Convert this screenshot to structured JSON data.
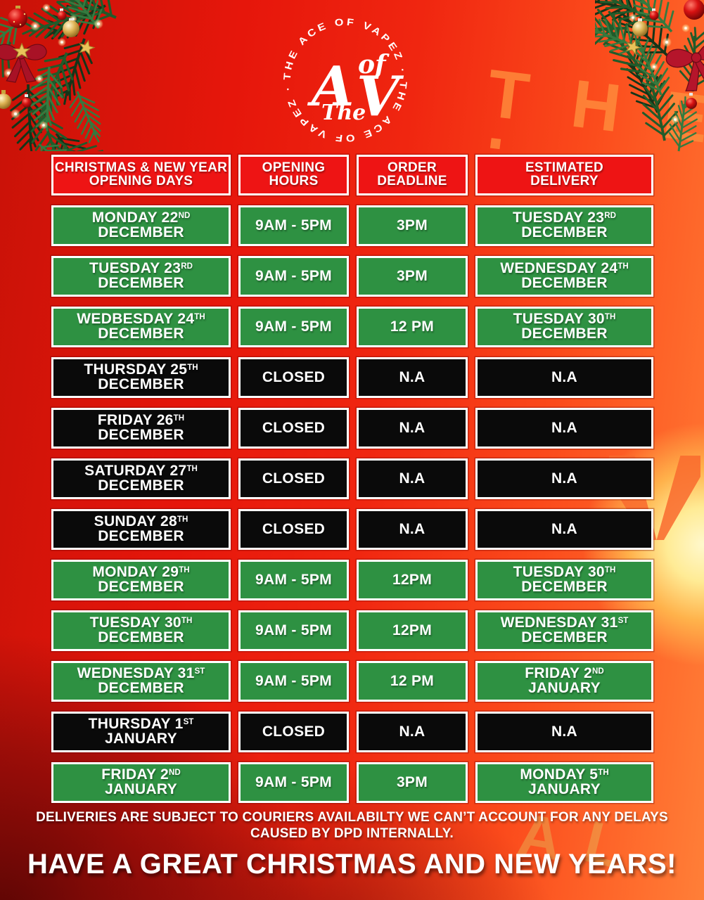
{
  "logo": {
    "ring_text": "THE ACE OF VAPEZ · THE ACE OF VAPEZ ·",
    "monogram": {
      "the": "The",
      "a": "A",
      "of": "of",
      "v": "V"
    }
  },
  "watermark": {
    "top_letters": "THE",
    "top_dot": "·",
    "bottom_letters": [
      "A",
      "L"
    ]
  },
  "table": {
    "headers": [
      {
        "l1": "CHRISTMAS & NEW YEAR",
        "l2": "OPENING DAYS"
      },
      {
        "l1": "OPENING",
        "l2": "HOURS"
      },
      {
        "l1": "ORDER",
        "l2": "DEADLINE"
      },
      {
        "l1": "ESTIMATED",
        "l2": "DELIVERY"
      }
    ],
    "rows": [
      {
        "status": "open",
        "day": {
          "l1": "MONDAY 22",
          "sup": "ND",
          "l2": "DECEMBER"
        },
        "hours": "9AM - 5PM",
        "deadline": "3PM",
        "delivery": {
          "l1": "TUESDAY 23",
          "sup": "RD",
          "l2": "DECEMBER"
        }
      },
      {
        "status": "open",
        "day": {
          "l1": "TUESDAY 23",
          "sup": "RD",
          "l2": "DECEMBER"
        },
        "hours": "9AM - 5PM",
        "deadline": "3PM",
        "delivery": {
          "l1": "WEDNESDAY 24",
          "sup": "TH",
          "l2": "DECEMBER"
        }
      },
      {
        "status": "open",
        "day": {
          "l1": "WEDBESDAY 24",
          "sup": "TH",
          "l2": "DECEMBER"
        },
        "hours": "9AM - 5PM",
        "deadline": "12 PM",
        "delivery": {
          "l1": "TUESDAY 30",
          "sup": "TH",
          "l2": "DECEMBER"
        }
      },
      {
        "status": "closed",
        "day": {
          "l1": "THURSDAY 25",
          "sup": "TH",
          "l2": "DECEMBER"
        },
        "hours": "CLOSED",
        "deadline": "N.A",
        "delivery": {
          "l1": "N.A"
        }
      },
      {
        "status": "closed",
        "day": {
          "l1": "FRIDAY 26",
          "sup": "TH",
          "l2": "DECEMBER"
        },
        "hours": "CLOSED",
        "deadline": "N.A",
        "delivery": {
          "l1": "N.A"
        }
      },
      {
        "status": "closed",
        "day": {
          "l1": "SATURDAY 27",
          "sup": "TH",
          "l2": "DECEMBER"
        },
        "hours": "CLOSED",
        "deadline": "N.A",
        "delivery": {
          "l1": "N.A"
        }
      },
      {
        "status": "closed",
        "day": {
          "l1": "SUNDAY 28",
          "sup": "TH",
          "l2": "DECEMBER"
        },
        "hours": "CLOSED",
        "deadline": "N.A",
        "delivery": {
          "l1": "N.A"
        }
      },
      {
        "status": "open",
        "day": {
          "l1": "MONDAY 29",
          "sup": "TH",
          "l2": "DECEMBER"
        },
        "hours": "9AM - 5PM",
        "deadline": "12PM",
        "delivery": {
          "l1": "TUESDAY 30",
          "sup": "TH",
          "l2": "DECEMBER"
        }
      },
      {
        "status": "open",
        "day": {
          "l1": "TUESDAY 30",
          "sup": "TH",
          "l2": "DECEMBER"
        },
        "hours": "9AM - 5PM",
        "deadline": "12PM",
        "delivery": {
          "l1": "WEDNESDAY 31",
          "sup": "ST",
          "l2": "DECEMBER"
        }
      },
      {
        "status": "open",
        "day": {
          "l1": "WEDNESDAY 31",
          "sup": "ST",
          "l2": "DECEMBER"
        },
        "hours": "9AM - 5PM",
        "deadline": "12 PM",
        "delivery": {
          "l1": "FRIDAY 2",
          "sup": "ND",
          "l2": "JANUARY"
        }
      },
      {
        "status": "closed",
        "day": {
          "l1": "THURSDAY 1",
          "sup": "ST",
          "l2": "JANUARY"
        },
        "hours": "CLOSED",
        "deadline": "N.A",
        "delivery": {
          "l1": "N.A"
        }
      },
      {
        "status": "open",
        "day": {
          "l1": "FRIDAY 2",
          "sup": "ND",
          "l2": "JANUARY"
        },
        "hours": "9AM - 5PM",
        "deadline": "3PM",
        "delivery": {
          "l1": "MONDAY 5",
          "sup": "TH",
          "l2": "JANUARY"
        }
      }
    ]
  },
  "footer": {
    "disclaimer_l1": "DELIVERIES ARE SUBJECT TO COURIERS AVAILABILTY WE CAN’T ACCOUNT FOR ANY DELAYS",
    "disclaimer_l2": "CAUSED BY DPD INTERNALLY.",
    "greeting": "HAVE A GREAT CHRISTMAS AND NEW YEARS!"
  },
  "colors": {
    "open_green": "#2e9142",
    "closed_black": "#0a0a0a",
    "header_red": "#ee1414",
    "background_red": "#e6160b",
    "accent_orange": "#ff7f38"
  }
}
